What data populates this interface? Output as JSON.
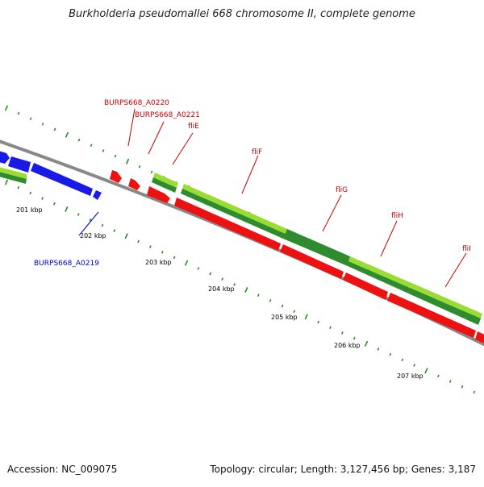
{
  "header": {
    "title": "Burkholderia pseudomallei 668 chromosome II, complete genome"
  },
  "footer": {
    "accession": "Accession: NC_009075",
    "summary": "Topology: circular; Length: 3,127,456 bp; Genes: 3,187"
  },
  "scale_labels": [
    "201 kbp",
    "202 kbp",
    "203 kbp",
    "204 kbp",
    "205 kbp",
    "206 kbp",
    "207 kbp"
  ],
  "gene_labels": [
    {
      "name": "BURPS668_A0219",
      "color": "#0000cc"
    },
    {
      "name": "BURPS668_A0220",
      "color": "#cc0000"
    },
    {
      "name": "BURPS668_A0221",
      "color": "#cc0000"
    },
    {
      "name": "fliE",
      "color": "#cc0000"
    },
    {
      "name": "fliF",
      "color": "#cc0000"
    },
    {
      "name": "fliG",
      "color": "#cc0000"
    },
    {
      "name": "fliH",
      "color": "#cc0000"
    },
    {
      "name": "fliI",
      "color": "#cc0000"
    }
  ],
  "colors": {
    "forward_gene": "#ee1111",
    "reverse_gene": "#1a1ae6",
    "cog_light": "#99dd33",
    "cog_dark": "#2e8b2e",
    "backbone": "#888888",
    "tick": "#2a8a2a"
  }
}
